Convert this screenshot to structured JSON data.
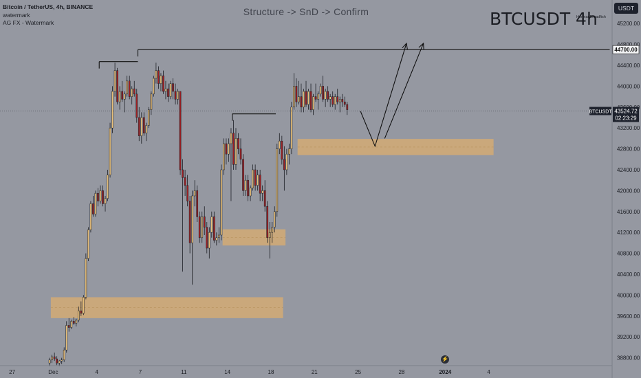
{
  "header": {
    "symbol_line": "Bitcoin / TetherUS, 4h, BINANCE",
    "watermark_line1": "watermark",
    "watermark_line2": "AG FX - Watermark",
    "plot_title": "Structure -> SnD -> Confirm",
    "big_title": "BTCUSDT 4h",
    "author": "HormanBreadfish"
  },
  "price_scale": {
    "currency_button": "USDT",
    "last_price_label": "43524.72",
    "countdown_label": "02:23:29",
    "ticker_label": "BTCUSDT",
    "level_label": "44700.00"
  },
  "icons": {
    "flash": "lightning-icon"
  },
  "colors": {
    "background": "#9598a1",
    "bull_body": "#e8c07a",
    "bear_body": "#9e1f22",
    "wick": "#1c1e24",
    "zone_fill": "#d4aa74",
    "scale_bg": "#1e222d"
  },
  "chart_data": {
    "type": "candlestick",
    "timeframe": "4h",
    "ylim": [
      38650,
      45650
    ],
    "yticks": [
      38800,
      39200,
      39600,
      40000,
      40400,
      40800,
      41200,
      41600,
      42000,
      42400,
      42800,
      43200,
      43600,
      44000,
      44400,
      44800,
      45200
    ],
    "ytick_labels": [
      "38800.00",
      "39200.00",
      "39600.00",
      "40000.00",
      "40400.00",
      "40800.00",
      "41200.00",
      "41600.00",
      "42000.00",
      "42400.00",
      "42800.00",
      "43200.00",
      "43600.00",
      "44000.00",
      "44400.00",
      "44800.00",
      "45200.00"
    ],
    "x_range_bars": [
      -20,
      233
    ],
    "xticks": [
      {
        "bar": -15,
        "label": "27"
      },
      {
        "bar": 2,
        "label": "Dec"
      },
      {
        "bar": 20,
        "label": "4"
      },
      {
        "bar": 38,
        "label": "7"
      },
      {
        "bar": 56,
        "label": "11"
      },
      {
        "bar": 74,
        "label": "14"
      },
      {
        "bar": 92,
        "label": "18"
      },
      {
        "bar": 110,
        "label": "21"
      },
      {
        "bar": 128,
        "label": "25"
      },
      {
        "bar": 146,
        "label": "28"
      },
      {
        "bar": 164,
        "label": "2024"
      },
      {
        "bar": 182,
        "label": "4"
      }
    ],
    "last_price": 43524.72,
    "candles": [
      [
        38700,
        38800,
        38640,
        38760
      ],
      [
        38760,
        38860,
        38700,
        38820
      ],
      [
        38820,
        38900,
        38740,
        38780
      ],
      [
        38780,
        38830,
        38660,
        38700
      ],
      [
        38700,
        38760,
        38640,
        38740
      ],
      [
        38740,
        38800,
        38680,
        38760
      ],
      [
        38760,
        39000,
        38720,
        38950
      ],
      [
        38950,
        39500,
        38900,
        39420
      ],
      [
        39420,
        39560,
        39300,
        39380
      ],
      [
        39380,
        39530,
        39350,
        39500
      ],
      [
        39500,
        39580,
        39430,
        39460
      ],
      [
        39460,
        39550,
        39400,
        39520
      ],
      [
        39520,
        39780,
        39480,
        39700
      ],
      [
        39700,
        39880,
        39600,
        39650
      ],
      [
        39650,
        40000,
        39620,
        39960
      ],
      [
        39960,
        40800,
        39920,
        40700
      ],
      [
        40700,
        41300,
        40650,
        41250
      ],
      [
        41250,
        41800,
        41200,
        41750
      ],
      [
        41750,
        41900,
        41500,
        41550
      ],
      [
        41550,
        42000,
        41500,
        41950
      ],
      [
        41950,
        42050,
        41700,
        41800
      ],
      [
        41800,
        42100,
        41750,
        42000
      ],
      [
        42000,
        42100,
        41700,
        41750
      ],
      [
        41750,
        41900,
        41600,
        41850
      ],
      [
        41850,
        42400,
        41800,
        42300
      ],
      [
        42300,
        43300,
        42250,
        43200
      ],
      [
        43200,
        44000,
        43100,
        43900
      ],
      [
        43900,
        44450,
        43800,
        44300
      ],
      [
        44300,
        44350,
        43650,
        43700
      ],
      [
        43700,
        44000,
        43550,
        43900
      ],
      [
        43900,
        44100,
        43700,
        43750
      ],
      [
        43750,
        43900,
        43500,
        43850
      ],
      [
        43850,
        44200,
        43800,
        44100
      ],
      [
        44100,
        44200,
        43750,
        43800
      ],
      [
        43800,
        44000,
        43650,
        43950
      ],
      [
        43950,
        44100,
        43800,
        43850
      ],
      [
        43850,
        43950,
        43300,
        43400
      ],
      [
        43400,
        43600,
        42950,
        43050
      ],
      [
        43050,
        43500,
        42900,
        43400
      ],
      [
        43400,
        43500,
        43050,
        43100
      ],
      [
        43100,
        43300,
        42950,
        43250
      ],
      [
        43250,
        43600,
        43200,
        43550
      ],
      [
        43550,
        43900,
        43450,
        43850
      ],
      [
        43850,
        44200,
        43800,
        44150
      ],
      [
        44150,
        44450,
        44050,
        44300
      ],
      [
        44300,
        44380,
        43950,
        44050
      ],
      [
        44050,
        44250,
        43900,
        44200
      ],
      [
        44200,
        44300,
        43850,
        43900
      ],
      [
        43900,
        44100,
        43750,
        43950
      ],
      [
        43950,
        44050,
        43700,
        43800
      ],
      [
        43800,
        44100,
        43750,
        44050
      ],
      [
        44050,
        44150,
        43750,
        43900
      ],
      [
        43900,
        44050,
        43650,
        43750
      ],
      [
        43750,
        43950,
        43650,
        43900
      ],
      [
        43900,
        43900,
        42300,
        42400
      ],
      [
        42400,
        42600,
        40450,
        42250
      ],
      [
        42250,
        42400,
        41900,
        42100
      ],
      [
        42100,
        42300,
        41700,
        41800
      ],
      [
        41800,
        41900,
        40800,
        41000
      ],
      [
        41000,
        42000,
        40200,
        41900
      ],
      [
        41900,
        42200,
        41700,
        42000
      ],
      [
        42000,
        42100,
        41400,
        41500
      ],
      [
        41500,
        41600,
        41000,
        41100
      ],
      [
        41100,
        41600,
        41000,
        41500
      ],
      [
        41500,
        41700,
        41150,
        41300
      ],
      [
        41300,
        41400,
        40800,
        40900
      ],
      [
        40900,
        41300,
        40700,
        41200
      ],
      [
        41200,
        41600,
        41100,
        41500
      ],
      [
        41500,
        41600,
        41000,
        41050
      ],
      [
        41050,
        41200,
        40950,
        41100
      ],
      [
        41100,
        41300,
        41000,
        41150
      ],
      [
        41150,
        42500,
        41050,
        42400
      ],
      [
        42400,
        43000,
        42300,
        42900
      ],
      [
        42900,
        43000,
        42500,
        42700
      ],
      [
        42700,
        43000,
        42550,
        42900
      ],
      [
        42900,
        43200,
        41800,
        43100
      ],
      [
        43100,
        43350,
        42400,
        42500
      ],
      [
        42500,
        43200,
        42400,
        43000
      ],
      [
        43000,
        43100,
        42700,
        42800
      ],
      [
        42800,
        43000,
        42500,
        42600
      ],
      [
        42600,
        42700,
        41900,
        42000
      ],
      [
        42000,
        42300,
        41900,
        42200
      ],
      [
        42200,
        42300,
        41800,
        41900
      ],
      [
        41900,
        42100,
        41800,
        42050
      ],
      [
        42050,
        42500,
        42000,
        42400
      ],
      [
        42400,
        42500,
        42000,
        42100
      ],
      [
        42100,
        42400,
        42000,
        42300
      ],
      [
        42300,
        42400,
        41800,
        41950
      ],
      [
        41950,
        42100,
        41800,
        42000
      ],
      [
        42000,
        42200,
        41600,
        41700
      ],
      [
        41700,
        41800,
        41000,
        41100
      ],
      [
        41100,
        41400,
        40700,
        41200
      ],
      [
        41200,
        41400,
        41000,
        41300
      ],
      [
        41300,
        41700,
        41200,
        41600
      ],
      [
        41600,
        42900,
        41500,
        42800
      ],
      [
        42800,
        43100,
        42700,
        42950
      ],
      [
        42950,
        43050,
        42500,
        42600
      ],
      [
        42600,
        42850,
        42000,
        42400
      ],
      [
        42400,
        42800,
        42300,
        42700
      ],
      [
        42700,
        42900,
        42500,
        42800
      ],
      [
        42800,
        43700,
        42700,
        43600
      ],
      [
        43600,
        44250,
        43550,
        44000
      ],
      [
        44000,
        44150,
        43600,
        43700
      ],
      [
        43700,
        44100,
        43650,
        43800
      ],
      [
        43800,
        44050,
        43500,
        43600
      ],
      [
        43600,
        43950,
        43500,
        43900
      ],
      [
        43900,
        44100,
        43600,
        43650
      ],
      [
        43650,
        43950,
        43550,
        43900
      ],
      [
        43900,
        44050,
        43500,
        43550
      ],
      [
        43550,
        43850,
        43450,
        43800
      ],
      [
        43800,
        44050,
        43700,
        43750
      ],
      [
        43750,
        43900,
        43550,
        43850
      ],
      [
        43850,
        44050,
        43800,
        44000
      ],
      [
        44000,
        44200,
        43700,
        43750
      ],
      [
        43750,
        43950,
        43600,
        43900
      ],
      [
        43900,
        44000,
        43700,
        43750
      ],
      [
        43750,
        43850,
        43600,
        43800
      ],
      [
        43800,
        43900,
        43600,
        43650
      ],
      [
        43650,
        43850,
        43550,
        43800
      ],
      [
        43800,
        43950,
        43650,
        43700
      ],
      [
        43700,
        43800,
        43500,
        43750
      ],
      [
        43750,
        43850,
        43600,
        43700
      ],
      [
        43700,
        43800,
        43600,
        43650
      ],
      [
        43650,
        43700,
        43450,
        43550
      ]
    ],
    "annotations": {
      "resistance_level": 44700,
      "structure_lines": [
        {
          "x1": 21,
          "x2": 37,
          "price": 44470
        },
        {
          "x1": 37,
          "x2": 232,
          "price": 44700
        },
        {
          "x1": 76,
          "x2": 94,
          "price": 43470
        }
      ],
      "zones": [
        {
          "x1": 1,
          "x2": 97,
          "y_low": 39560,
          "y_high": 39960
        },
        {
          "x1": 72,
          "x2": 98,
          "y_low": 40950,
          "y_high": 41260
        },
        {
          "x1": 103,
          "x2": 184,
          "y_low": 42680,
          "y_high": 42990
        }
      ],
      "projection_path": [
        {
          "bar": 129,
          "price": 43520
        },
        {
          "bar": 135,
          "price": 42850
        },
        {
          "bar": 148,
          "price": 44820
        }
      ],
      "projection_path_2": [
        {
          "bar": 139,
          "price": 43000
        },
        {
          "bar": 155,
          "price": 44820
        }
      ]
    }
  }
}
